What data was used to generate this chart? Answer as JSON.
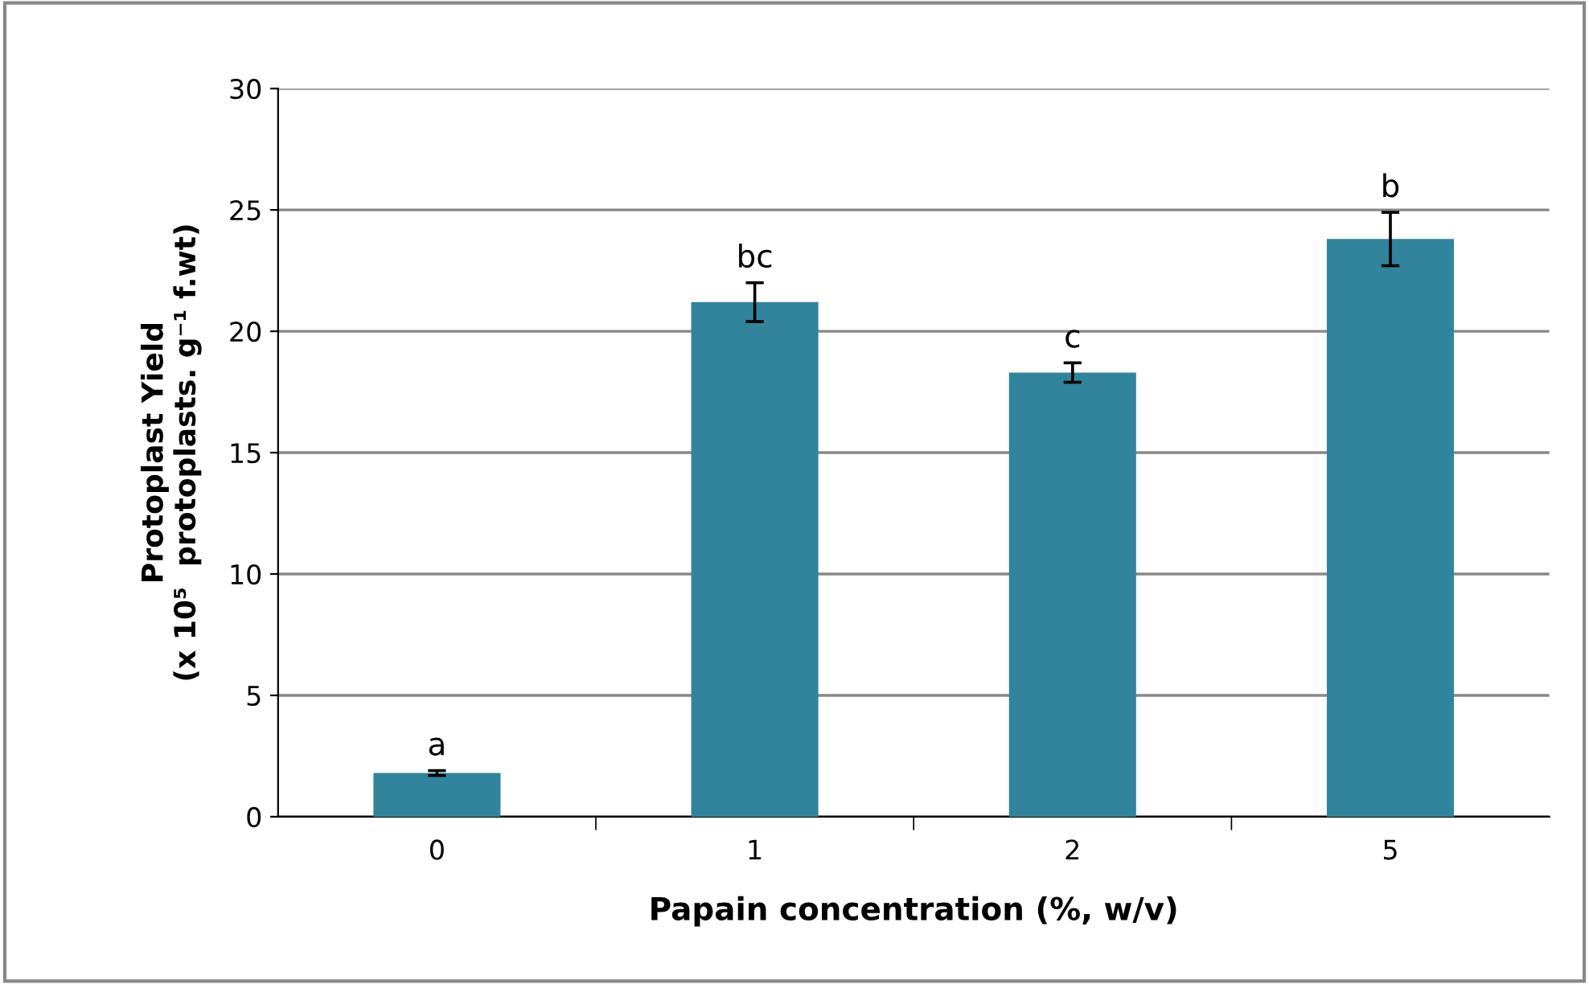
{
  "chart_data": {
    "type": "bar",
    "categories": [
      "0",
      "1",
      "2",
      "5"
    ],
    "values": [
      1.8,
      21.2,
      18.3,
      23.8
    ],
    "errors": [
      0.1,
      0.8,
      0.4,
      1.1
    ],
    "color": "#31849b",
    "xlabel": "Papain concentration (%, w/v)",
    "ylabel": "Protoplast Yield\n(x 10⁵  protoplasts. g⁻¹ f.wt)",
    "ylim": [
      0,
      30
    ],
    "yticks": [
      0,
      5,
      10,
      15,
      20,
      25,
      30
    ],
    "grid": "y",
    "annotations": [
      {
        "text": "a",
        "x": "0",
        "y": 1.9
      },
      {
        "text": "bc",
        "x": "1",
        "y": 22.0
      },
      {
        "text": "c",
        "x": "2",
        "y": 18.7
      },
      {
        "text": "b",
        "x": "5",
        "y": 24.9
      }
    ]
  }
}
